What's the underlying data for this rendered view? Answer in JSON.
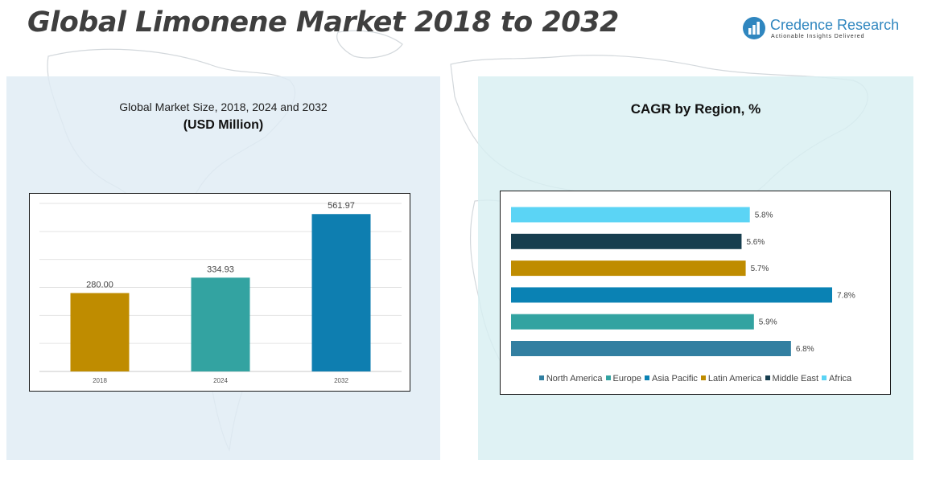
{
  "header": {
    "title": "Global Limonene Market 2018 to 2032"
  },
  "logo": {
    "name": "Credence Research",
    "tagline": "Actionable Insights Delivered",
    "icon": "bar-chart-icon",
    "color": "#2f86bf"
  },
  "left_panel": {
    "title_line1": "Global Market Size, 2018, 2024 and 2032",
    "title_line2": "(USD Million)"
  },
  "right_panel": {
    "title": "CAGR by Region, %"
  },
  "chart_data": [
    {
      "type": "bar",
      "title": "Global Market Size, 2018, 2024 and 2032 (USD Million)",
      "categories": [
        "2018",
        "2024",
        "2032"
      ],
      "values": [
        280.0,
        334.93,
        561.97
      ],
      "data_labels": [
        "280.00",
        "334.93",
        "561.97"
      ],
      "colors": [
        "#bf8c00",
        "#33a3a1",
        "#0e7eb0"
      ],
      "ylim": [
        0,
        600
      ],
      "grid": true,
      "xlabel": "",
      "ylabel": ""
    },
    {
      "type": "bar",
      "orientation": "horizontal",
      "title": "CAGR by Region, %",
      "categories": [
        "North America",
        "Europe",
        "Asia Pacific",
        "Latin America",
        "Middle East",
        "Africa"
      ],
      "values": [
        6.8,
        5.9,
        7.8,
        5.7,
        5.6,
        5.8
      ],
      "data_labels": [
        "6.8%",
        "5.9%",
        "7.8%",
        "5.7%",
        "5.6%",
        "5.8%"
      ],
      "colors": [
        "#327fa1",
        "#32a3a1",
        "#0a82b4",
        "#bf8c00",
        "#173e4f",
        "#5bd4f5"
      ],
      "xlim": [
        0,
        8.5
      ],
      "grid": false,
      "legend": "bottom"
    }
  ]
}
